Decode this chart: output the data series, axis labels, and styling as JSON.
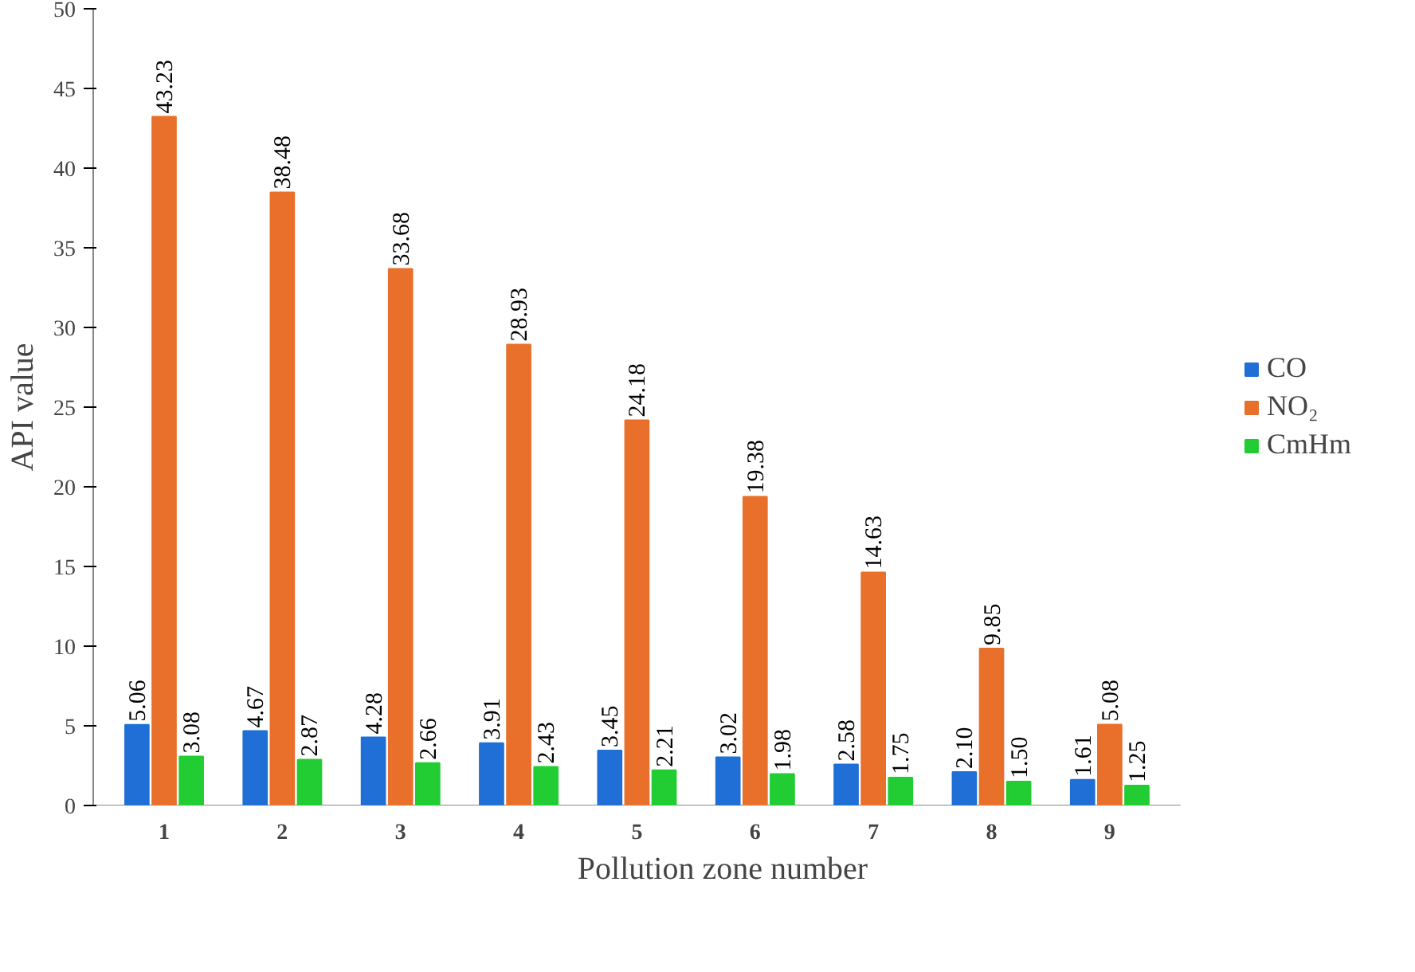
{
  "chart_data": {
    "type": "bar",
    "xlabel": "Pollution zone number",
    "ylabel": "API value",
    "categories": [
      "1",
      "2",
      "3",
      "4",
      "5",
      "6",
      "7",
      "8",
      "9"
    ],
    "series": [
      {
        "name": "CO",
        "color": "#1f6fd6",
        "values": [
          5.06,
          4.67,
          4.28,
          3.91,
          3.45,
          3.02,
          2.58,
          2.1,
          1.61
        ],
        "value_labels": [
          "5.06",
          "4.67",
          "4.28",
          "3.91",
          "3.45",
          "3.02",
          "2.58",
          "2.10",
          "1.61"
        ]
      },
      {
        "name": "NO₂",
        "color": "#e8702a",
        "values": [
          43.23,
          38.48,
          33.68,
          28.93,
          24.18,
          19.38,
          14.63,
          9.85,
          5.08
        ],
        "value_labels": [
          "43.23",
          "38.48",
          "33.68",
          "28.93",
          "24.18",
          "19.38",
          "14.63",
          "9.85",
          "5.08"
        ]
      },
      {
        "name": "CmHm",
        "color": "#22cc33",
        "values": [
          3.08,
          2.87,
          2.66,
          2.43,
          2.21,
          1.98,
          1.75,
          1.5,
          1.25
        ],
        "value_labels": [
          "3.08",
          "2.87",
          "2.66",
          "2.43",
          "2.21",
          "1.98",
          "1.75",
          "1.50",
          "1.25"
        ]
      }
    ],
    "ylim": [
      0,
      50
    ],
    "yticks": [
      0,
      5,
      10,
      15,
      20,
      25,
      30,
      35,
      40,
      45,
      50
    ],
    "legend": "right"
  }
}
